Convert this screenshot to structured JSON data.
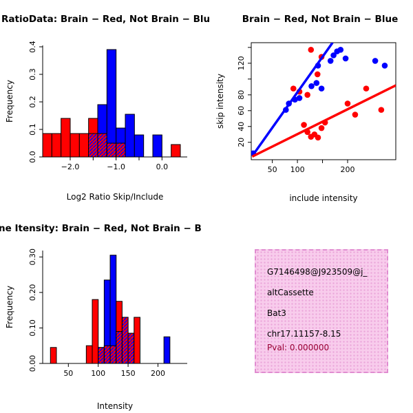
{
  "colors": {
    "red": "#FF0000",
    "blue": "#0000FF",
    "axis": "#000000",
    "info_bg": "#F8CCEC",
    "info_border": "#E08CD0",
    "pval_color": "#990033"
  },
  "chart_data": [
    {
      "id": "ratio-hist",
      "type": "bar",
      "title": "RatioData: Brain − Red, Not Brain − Blu",
      "xlabel": "Log2 Ratio Skip/Include",
      "ylabel": "Frequency",
      "xlim": [
        -2.6,
        0.55
      ],
      "ylim": [
        0,
        0.405
      ],
      "xticks": [
        -2.0,
        -1.5,
        -1.0,
        -0.5,
        0.0
      ],
      "xtick_labels": [
        "−2.0",
        "",
        "−1.0",
        "",
        "0.0"
      ],
      "yticks": [
        0.0,
        0.1,
        0.2,
        0.3,
        0.4
      ],
      "ytick_labels": [
        "0.0",
        "0.1",
        "0.2",
        "0.3",
        "0.4"
      ],
      "legend_note": "red = Brain, blue = Not Brain, hatched = overlap",
      "bars": [
        {
          "x0": -2.6,
          "x1": -2.4,
          "h": 0.085,
          "fill": "red",
          "ov": 0
        },
        {
          "x0": -2.4,
          "x1": -2.2,
          "h": 0.085,
          "fill": "red",
          "ov": 0
        },
        {
          "x0": -2.2,
          "x1": -2.0,
          "h": 0.14,
          "fill": "red",
          "ov": 0
        },
        {
          "x0": -2.0,
          "x1": -1.8,
          "h": 0.085,
          "fill": "red",
          "ov": 0
        },
        {
          "x0": -1.8,
          "x1": -1.6,
          "h": 0.085,
          "fill": "red",
          "ov": 0
        },
        {
          "x0": -1.6,
          "x1": -1.4,
          "h": 0.14,
          "fill": "red",
          "ov": 0.085
        },
        {
          "x0": -1.4,
          "x1": -1.2,
          "h": 0.19,
          "fill": "blue",
          "ov": 0.085
        },
        {
          "x0": -1.2,
          "x1": -1.0,
          "h": 0.39,
          "fill": "blue",
          "ov": 0.05
        },
        {
          "x0": -1.0,
          "x1": -0.8,
          "h": 0.105,
          "fill": "blue",
          "ov": 0.05
        },
        {
          "x0": -0.8,
          "x1": -0.6,
          "h": 0.155,
          "fill": "blue",
          "ov": 0
        },
        {
          "x0": -0.6,
          "x1": -0.4,
          "h": 0.08,
          "fill": "blue",
          "ov": 0
        },
        {
          "x0": -0.2,
          "x1": 0.0,
          "h": 0.08,
          "fill": "blue",
          "ov": 0
        },
        {
          "x0": 0.2,
          "x1": 0.4,
          "h": 0.045,
          "fill": "red",
          "ov": 0
        }
      ]
    },
    {
      "id": "intensity-scatter",
      "type": "scatter",
      "title": "Brain − Red, Not Brain − Blue",
      "xlabel": "include intensity",
      "ylabel": "skip intensity",
      "xlim": [
        8,
        296
      ],
      "ylim": [
        -2,
        146
      ],
      "xticks": [
        50,
        100,
        150,
        200
      ],
      "xtick_labels": [
        "50",
        "100",
        "",
        "200"
      ],
      "yticks": [
        20,
        40,
        60,
        80,
        100,
        120,
        140
      ],
      "ytick_labels": [
        "20",
        "40",
        "60",
        "80",
        "",
        "120",
        ""
      ],
      "series": [
        {
          "name": "brain",
          "color": "red",
          "points": [
            [
              113,
              42
            ],
            [
              120,
              33
            ],
            [
              127,
              27
            ],
            [
              134,
              30
            ],
            [
              141,
              26
            ],
            [
              148,
              38
            ],
            [
              155,
              45
            ],
            [
              92,
              88
            ],
            [
              104,
              84
            ],
            [
              120,
              80
            ],
            [
              127,
              137
            ],
            [
              148,
              128
            ],
            [
              140,
              106
            ],
            [
              200,
              69
            ],
            [
              237,
              88
            ],
            [
              267,
              61
            ],
            [
              215,
              55
            ]
          ]
        },
        {
          "name": "not-brain",
          "color": "blue",
          "points": [
            [
              12,
              6
            ],
            [
              77,
              61
            ],
            [
              83,
              69
            ],
            [
              95,
              74
            ],
            [
              104,
              76
            ],
            [
              128,
              91
            ],
            [
              138,
              95
            ],
            [
              148,
              88
            ],
            [
              141,
              117
            ],
            [
              166,
              123
            ],
            [
              172,
              130
            ],
            [
              179,
              135
            ],
            [
              186,
              137
            ],
            [
              196,
              126
            ],
            [
              255,
              123
            ],
            [
              274,
              117
            ]
          ]
        }
      ],
      "lines": [
        {
          "name": "brain-fit",
          "color": "red",
          "x1": 10,
          "y1": 2,
          "x2": 296,
          "y2": 92
        },
        {
          "name": "not-brain-fit",
          "color": "blue",
          "x1": 16,
          "y1": 8,
          "x2": 170,
          "y2": 146
        }
      ]
    },
    {
      "id": "gene-intensity-hist",
      "type": "bar",
      "title": "ne Itensity: Brain − Red, Not Brain − B",
      "xlabel": "Intensity",
      "ylabel": "Frequency",
      "xlim": [
        7,
        249
      ],
      "ylim": [
        0,
        0.318
      ],
      "xticks": [
        50,
        100,
        150,
        200
      ],
      "xtick_labels": [
        "50",
        "100",
        "150",
        "200"
      ],
      "yticks": [
        0.0,
        0.1,
        0.2,
        0.3
      ],
      "ytick_labels": [
        "0.00",
        "0.10",
        "0.20",
        "0.30"
      ],
      "legend_note": "red = Brain, blue = Not Brain, hatched = overlap",
      "bars": [
        {
          "x0": 20,
          "x1": 30,
          "h": 0.045,
          "fill": "red",
          "ov": 0
        },
        {
          "x0": 80,
          "x1": 90,
          "h": 0.05,
          "fill": "red",
          "ov": 0
        },
        {
          "x0": 90,
          "x1": 100,
          "h": 0.18,
          "fill": "red",
          "ov": 0
        },
        {
          "x0": 100,
          "x1": 110,
          "h": 0.045,
          "fill": "red",
          "ov": 0.045
        },
        {
          "x0": 110,
          "x1": 120,
          "h": 0.235,
          "fill": "blue",
          "ov": 0.05
        },
        {
          "x0": 120,
          "x1": 130,
          "h": 0.305,
          "fill": "blue",
          "ov": 0.05
        },
        {
          "x0": 130,
          "x1": 140,
          "h": 0.175,
          "fill": "red",
          "ov": 0.09
        },
        {
          "x0": 140,
          "x1": 150,
          "h": 0.13,
          "fill": "red",
          "ov": 0.13
        },
        {
          "x0": 150,
          "x1": 160,
          "h": 0.085,
          "fill": "red",
          "ov": 0.085
        },
        {
          "x0": 160,
          "x1": 170,
          "h": 0.13,
          "fill": "red",
          "ov": 0
        },
        {
          "x0": 210,
          "x1": 220,
          "h": 0.075,
          "fill": "blue",
          "ov": 0
        }
      ]
    }
  ],
  "info_box": {
    "lines": [
      "G7146498@J923509@j_",
      "altCassette",
      "Bat3",
      "chr17.11157-8.15"
    ],
    "pval": "Pval: 0.000000"
  }
}
